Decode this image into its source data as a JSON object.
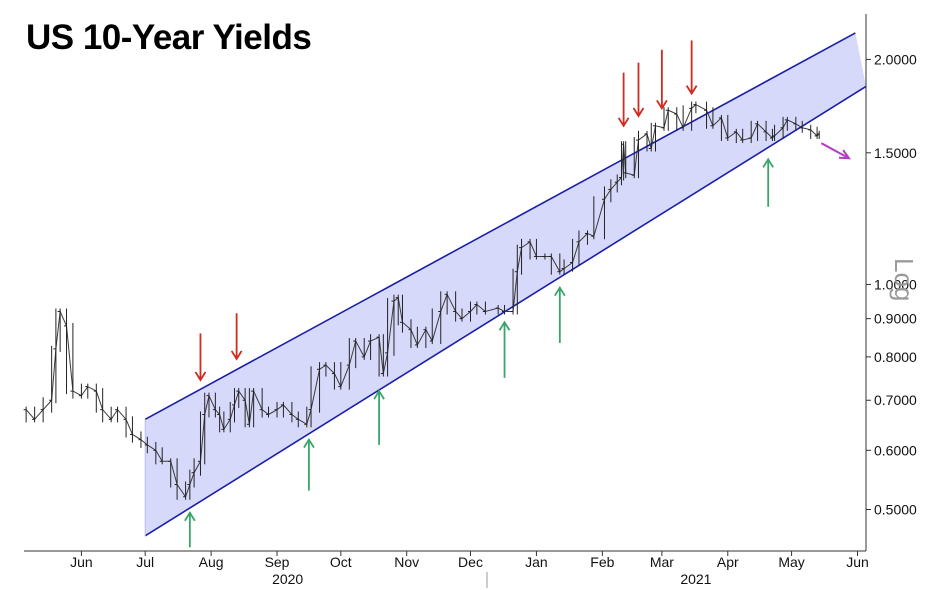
{
  "chart_data": {
    "type": "line",
    "title": "US 10-Year Yields",
    "scale_label": "Log",
    "scale": "log",
    "ylim": [
      0.44,
      2.3
    ],
    "xlim": [
      "2020-05-19",
      "2021-06-19"
    ],
    "y_ticks": [
      {
        "value": 0.5,
        "label": "0.5000"
      },
      {
        "value": 0.6,
        "label": "0.6000"
      },
      {
        "value": 0.7,
        "label": "0.7000"
      },
      {
        "value": 0.8,
        "label": "0.8000"
      },
      {
        "value": 0.9,
        "label": "0.9000"
      },
      {
        "value": 1.0,
        "label": "1.0000"
      },
      {
        "value": 1.5,
        "label": "1.5000"
      },
      {
        "value": 2.0,
        "label": "2.0000"
      }
    ],
    "x_months": [
      {
        "label": "Jun",
        "date": "2020-06-15"
      },
      {
        "label": "Jul",
        "date": "2020-07-15"
      },
      {
        "label": "Aug",
        "date": "2020-08-15"
      },
      {
        "label": "Sep",
        "date": "2020-09-15"
      },
      {
        "label": "Oct",
        "date": "2020-10-15"
      },
      {
        "label": "Nov",
        "date": "2020-11-15"
      },
      {
        "label": "Dec",
        "date": "2020-12-15"
      },
      {
        "label": "Jan",
        "date": "2021-01-15"
      },
      {
        "label": "Feb",
        "date": "2021-02-15"
      },
      {
        "label": "Mar",
        "date": "2021-03-15"
      },
      {
        "label": "Apr",
        "date": "2021-04-15"
      },
      {
        "label": "May",
        "date": "2021-05-15"
      },
      {
        "label": "Jun",
        "date": "2021-06-15"
      }
    ],
    "year_labels": [
      {
        "label": "2020",
        "date": "2020-09-20"
      },
      {
        "label": "2021",
        "date": "2021-03-31"
      }
    ],
    "series": [
      {
        "values": [
          {
            "x": "2020-05-20",
            "y": 0.68
          },
          {
            "x": "2020-05-24",
            "y": 0.66
          },
          {
            "x": "2020-05-28",
            "y": 0.68
          },
          {
            "x": "2020-06-01",
            "y": 0.7
          },
          {
            "x": "2020-06-03",
            "y": 0.82
          },
          {
            "x": "2020-06-05",
            "y": 0.92
          },
          {
            "x": "2020-06-08",
            "y": 0.88
          },
          {
            "x": "2020-06-11",
            "y": 0.72
          },
          {
            "x": "2020-06-15",
            "y": 0.71
          },
          {
            "x": "2020-06-18",
            "y": 0.73
          },
          {
            "x": "2020-06-22",
            "y": 0.72
          },
          {
            "x": "2020-06-25",
            "y": 0.68
          },
          {
            "x": "2020-06-29",
            "y": 0.66
          },
          {
            "x": "2020-07-02",
            "y": 0.68
          },
          {
            "x": "2020-07-06",
            "y": 0.66
          },
          {
            "x": "2020-07-09",
            "y": 0.63
          },
          {
            "x": "2020-07-13",
            "y": 0.62
          },
          {
            "x": "2020-07-16",
            "y": 0.61
          },
          {
            "x": "2020-07-20",
            "y": 0.6
          },
          {
            "x": "2020-07-23",
            "y": 0.58
          },
          {
            "x": "2020-07-27",
            "y": 0.58
          },
          {
            "x": "2020-07-30",
            "y": 0.54
          },
          {
            "x": "2020-08-03",
            "y": 0.52
          },
          {
            "x": "2020-08-05",
            "y": 0.54
          },
          {
            "x": "2020-08-07",
            "y": 0.56
          },
          {
            "x": "2020-08-10",
            "y": 0.58
          },
          {
            "x": "2020-08-12",
            "y": 0.67
          },
          {
            "x": "2020-08-14",
            "y": 0.71
          },
          {
            "x": "2020-08-17",
            "y": 0.68
          },
          {
            "x": "2020-08-19",
            "y": 0.67
          },
          {
            "x": "2020-08-21",
            "y": 0.64
          },
          {
            "x": "2020-08-24",
            "y": 0.66
          },
          {
            "x": "2020-08-26",
            "y": 0.69
          },
          {
            "x": "2020-08-28",
            "y": 0.72
          },
          {
            "x": "2020-08-31",
            "y": 0.7
          },
          {
            "x": "2020-09-02",
            "y": 0.65
          },
          {
            "x": "2020-09-04",
            "y": 0.72
          },
          {
            "x": "2020-09-08",
            "y": 0.68
          },
          {
            "x": "2020-09-11",
            "y": 0.67
          },
          {
            "x": "2020-09-15",
            "y": 0.68
          },
          {
            "x": "2020-09-18",
            "y": 0.69
          },
          {
            "x": "2020-09-22",
            "y": 0.67
          },
          {
            "x": "2020-09-25",
            "y": 0.66
          },
          {
            "x": "2020-09-29",
            "y": 0.65
          },
          {
            "x": "2020-10-01",
            "y": 0.68
          },
          {
            "x": "2020-10-05",
            "y": 0.77
          },
          {
            "x": "2020-10-08",
            "y": 0.78
          },
          {
            "x": "2020-10-12",
            "y": 0.76
          },
          {
            "x": "2020-10-15",
            "y": 0.73
          },
          {
            "x": "2020-10-19",
            "y": 0.78
          },
          {
            "x": "2020-10-22",
            "y": 0.84
          },
          {
            "x": "2020-10-26",
            "y": 0.8
          },
          {
            "x": "2020-10-29",
            "y": 0.84
          },
          {
            "x": "2020-11-02",
            "y": 0.85
          },
          {
            "x": "2020-11-04",
            "y": 0.76
          },
          {
            "x": "2020-11-06",
            "y": 0.81
          },
          {
            "x": "2020-11-09",
            "y": 0.95
          },
          {
            "x": "2020-11-11",
            "y": 0.96
          },
          {
            "x": "2020-11-13",
            "y": 0.89
          },
          {
            "x": "2020-11-17",
            "y": 0.87
          },
          {
            "x": "2020-11-20",
            "y": 0.83
          },
          {
            "x": "2020-11-24",
            "y": 0.87
          },
          {
            "x": "2020-11-27",
            "y": 0.84
          },
          {
            "x": "2020-12-01",
            "y": 0.92
          },
          {
            "x": "2020-12-04",
            "y": 0.97
          },
          {
            "x": "2020-12-08",
            "y": 0.92
          },
          {
            "x": "2020-12-11",
            "y": 0.9
          },
          {
            "x": "2020-12-15",
            "y": 0.92
          },
          {
            "x": "2020-12-18",
            "y": 0.94
          },
          {
            "x": "2020-12-22",
            "y": 0.92
          },
          {
            "x": "2020-12-28",
            "y": 0.93
          },
          {
            "x": "2020-12-31",
            "y": 0.92
          },
          {
            "x": "2021-01-04",
            "y": 0.92
          },
          {
            "x": "2021-01-06",
            "y": 1.04
          },
          {
            "x": "2021-01-08",
            "y": 1.12
          },
          {
            "x": "2021-01-12",
            "y": 1.14
          },
          {
            "x": "2021-01-15",
            "y": 1.09
          },
          {
            "x": "2021-01-19",
            "y": 1.09
          },
          {
            "x": "2021-01-22",
            "y": 1.09
          },
          {
            "x": "2021-01-26",
            "y": 1.04
          },
          {
            "x": "2021-01-28",
            "y": 1.05
          },
          {
            "x": "2021-02-01",
            "y": 1.07
          },
          {
            "x": "2021-02-04",
            "y": 1.14
          },
          {
            "x": "2021-02-08",
            "y": 1.17
          },
          {
            "x": "2021-02-11",
            "y": 1.16
          },
          {
            "x": "2021-02-16",
            "y": 1.3
          },
          {
            "x": "2021-02-19",
            "y": 1.34
          },
          {
            "x": "2021-02-22",
            "y": 1.37
          },
          {
            "x": "2021-02-24",
            "y": 1.39
          },
          {
            "x": "2021-02-25",
            "y": 1.54
          },
          {
            "x": "2021-02-26",
            "y": 1.41
          },
          {
            "x": "2021-03-02",
            "y": 1.4
          },
          {
            "x": "2021-03-04",
            "y": 1.56
          },
          {
            "x": "2021-03-08",
            "y": 1.59
          },
          {
            "x": "2021-03-10",
            "y": 1.52
          },
          {
            "x": "2021-03-12",
            "y": 1.63
          },
          {
            "x": "2021-03-16",
            "y": 1.62
          },
          {
            "x": "2021-03-18",
            "y": 1.71
          },
          {
            "x": "2021-03-22",
            "y": 1.69
          },
          {
            "x": "2021-03-25",
            "y": 1.62
          },
          {
            "x": "2021-03-29",
            "y": 1.72
          },
          {
            "x": "2021-03-31",
            "y": 1.74
          },
          {
            "x": "2021-04-05",
            "y": 1.71
          },
          {
            "x": "2021-04-08",
            "y": 1.63
          },
          {
            "x": "2021-04-12",
            "y": 1.67
          },
          {
            "x": "2021-04-15",
            "y": 1.57
          },
          {
            "x": "2021-04-19",
            "y": 1.6
          },
          {
            "x": "2021-04-22",
            "y": 1.56
          },
          {
            "x": "2021-04-26",
            "y": 1.57
          },
          {
            "x": "2021-04-29",
            "y": 1.64
          },
          {
            "x": "2021-05-03",
            "y": 1.6
          },
          {
            "x": "2021-05-06",
            "y": 1.57
          },
          {
            "x": "2021-05-07",
            "y": 1.58
          },
          {
            "x": "2021-05-11",
            "y": 1.62
          },
          {
            "x": "2021-05-13",
            "y": 1.66
          },
          {
            "x": "2021-05-17",
            "y": 1.64
          },
          {
            "x": "2021-05-20",
            "y": 1.62
          },
          {
            "x": "2021-05-24",
            "y": 1.61
          },
          {
            "x": "2021-05-27",
            "y": 1.58
          },
          {
            "x": "2021-05-28",
            "y": 1.59
          }
        ]
      }
    ],
    "channel": {
      "upper": [
        {
          "x": "2020-07-15",
          "y": 0.66
        },
        {
          "x": "2021-06-14",
          "y": 2.17
        }
      ],
      "lower": [
        {
          "x": "2020-07-15",
          "y": 0.461
        },
        {
          "x": "2021-06-19",
          "y": 1.84
        }
      ],
      "fill": "#d7d9fb",
      "line_color": "#1a1fa8"
    },
    "annotations": {
      "up_arrows": {
        "color": "#3aa56a",
        "points": [
          {
            "x": "2020-08-05",
            "from_y": 0.445,
            "to_y": 0.495
          },
          {
            "x": "2020-09-30",
            "from_y": 0.53,
            "to_y": 0.62
          },
          {
            "x": "2020-11-02",
            "from_y": 0.61,
            "to_y": 0.72
          },
          {
            "x": "2020-12-31",
            "from_y": 0.75,
            "to_y": 0.89
          },
          {
            "x": "2021-01-26",
            "from_y": 0.835,
            "to_y": 0.99
          },
          {
            "x": "2021-05-04",
            "from_y": 1.27,
            "to_y": 1.47
          }
        ]
      },
      "down_arrows": {
        "color": "#cf2b20",
        "points": [
          {
            "x": "2020-08-10",
            "from_y": 0.86,
            "to_y": 0.745
          },
          {
            "x": "2020-08-27",
            "from_y": 0.915,
            "to_y": 0.795
          },
          {
            "x": "2021-02-25",
            "from_y": 1.92,
            "to_y": 1.63
          },
          {
            "x": "2021-03-04",
            "from_y": 1.98,
            "to_y": 1.68
          },
          {
            "x": "2021-03-15",
            "from_y": 2.06,
            "to_y": 1.72
          },
          {
            "x": "2021-03-29",
            "from_y": 2.12,
            "to_y": 1.8
          }
        ]
      },
      "projection_arrow": {
        "color": "#b23ec2",
        "from": {
          "x": "2021-05-29",
          "y": 1.545
        },
        "to": {
          "x": "2021-06-11",
          "y": 1.475
        }
      }
    }
  }
}
